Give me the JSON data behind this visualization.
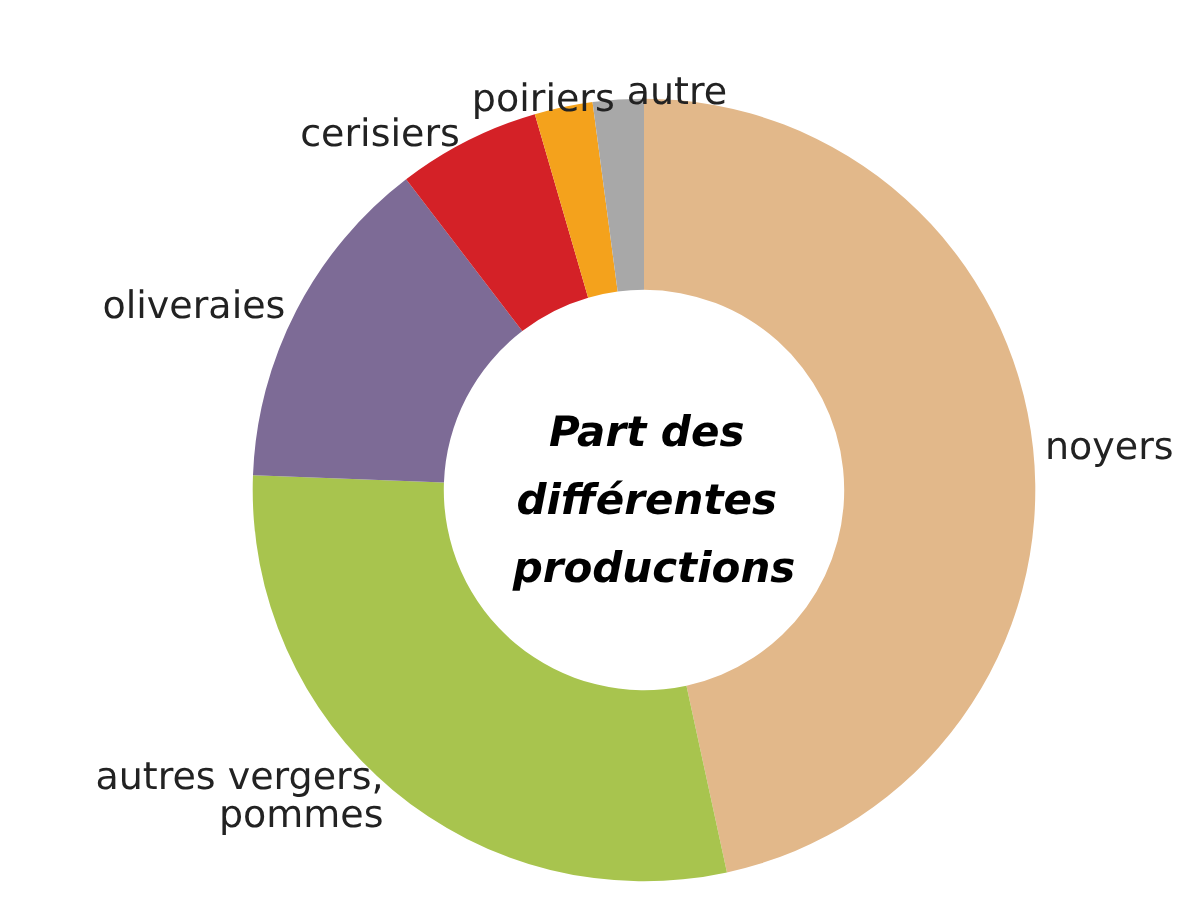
{
  "chart_data": {
    "type": "donut",
    "title": "Part des différentes productions",
    "categories": [
      "noyers",
      "autres vergers, pommes",
      "oliveraies",
      "cerisiers",
      "poiriers",
      "autre"
    ],
    "values": [
      46.6,
      29,
      14,
      5.9,
      2.4,
      2.1
    ],
    "colors": [
      "#e2b88a",
      "#a8c44e",
      "#7d6b96",
      "#d42127",
      "#f4a21c",
      "#a8a8a8"
    ],
    "legend": false
  }
}
